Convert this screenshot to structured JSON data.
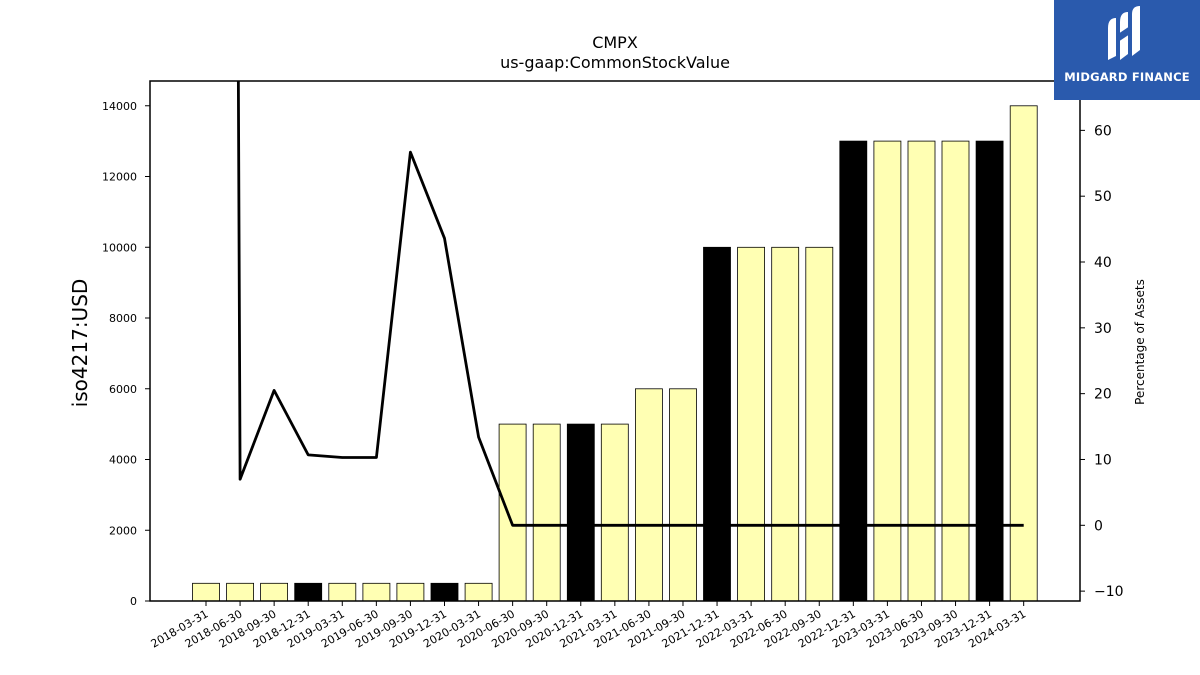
{
  "chart_data": {
    "type": "bar",
    "title": "CMPX",
    "subtitle": "us-gaap:CommonStockValue",
    "ylabel": "iso4217:USD",
    "y2label": "Percentage of Assets",
    "ylim": [
      0,
      14700
    ],
    "y2lim": [
      -11.5,
      67.5
    ],
    "yticks": [
      0,
      2000,
      4000,
      6000,
      8000,
      10000,
      12000,
      14000
    ],
    "y2ticks": [
      -10,
      0,
      10,
      20,
      30,
      40,
      50,
      60
    ],
    "categories": [
      "2018-03-31",
      "2018-06-30",
      "2018-09-30",
      "2018-12-31",
      "2019-03-31",
      "2019-06-30",
      "2019-09-30",
      "2019-12-31",
      "2020-03-31",
      "2020-06-30",
      "2020-09-30",
      "2020-12-31",
      "2021-03-31",
      "2021-06-30",
      "2021-09-30",
      "2021-12-31",
      "2022-03-31",
      "2022-06-30",
      "2022-09-30",
      "2022-12-31",
      "2023-03-31",
      "2023-06-30",
      "2023-09-30",
      "2023-12-31",
      "2024-03-31"
    ],
    "series": [
      {
        "type": "bar",
        "values": [
          500,
          500,
          500,
          500,
          500,
          500,
          500,
          500,
          500,
          5000,
          5000,
          5000,
          5000,
          6000,
          6000,
          10000,
          10000,
          10000,
          10000,
          13000,
          13000,
          13000,
          13000,
          13000,
          14000
        ],
        "highlight": [
          false,
          false,
          false,
          true,
          false,
          false,
          false,
          true,
          false,
          false,
          false,
          true,
          false,
          false,
          false,
          true,
          false,
          false,
          false,
          true,
          false,
          false,
          false,
          true,
          false
        ]
      },
      {
        "type": "line",
        "axis": "right",
        "values": [
          80,
          7,
          20.5,
          10.7,
          10.3,
          10.3,
          56.7,
          43.6,
          13.4,
          0,
          0,
          0,
          0,
          0,
          0,
          0,
          0,
          0,
          0,
          0,
          0,
          0,
          0,
          0,
          0
        ]
      }
    ],
    "colors": {
      "bar": "#ffffb3",
      "bar_highlight": "#000000",
      "line": "#000000"
    },
    "grid": false
  },
  "logo": {
    "text": "MIDGARD FINANCE",
    "icon": "midgard-logo-icon",
    "color": "#2a5aad"
  }
}
